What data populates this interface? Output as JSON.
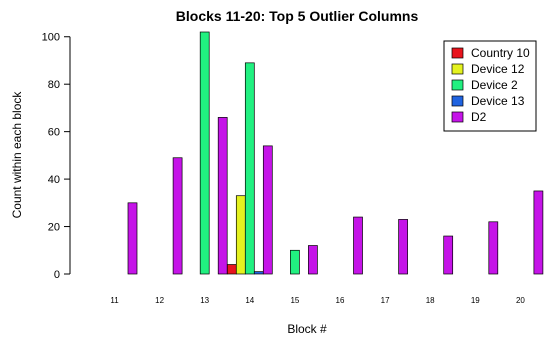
{
  "chart_data": {
    "type": "bar",
    "title": "Blocks 11-20: Top 5 Outlier Columns",
    "xlabel": "Block #",
    "ylabel": "Count within each block",
    "categories": [
      "11",
      "12",
      "13",
      "14",
      "15",
      "16",
      "17",
      "18",
      "19",
      "20"
    ],
    "ylim": [
      0,
      102
    ],
    "yticks": [
      0,
      20,
      40,
      60,
      80,
      100
    ],
    "legend_position": "top-right",
    "grid": false,
    "series": [
      {
        "name": "Country 10",
        "color": "#e8141d",
        "values": [
          0,
          0,
          0,
          4,
          0,
          0,
          0,
          0,
          0,
          0
        ]
      },
      {
        "name": "Device 12",
        "color": "#e4f21f",
        "values": [
          0,
          0,
          0,
          33,
          0,
          0,
          0,
          0,
          0,
          0
        ]
      },
      {
        "name": "Device 2",
        "color": "#21f080",
        "values": [
          0,
          0,
          102,
          89,
          10,
          0,
          0,
          0,
          0,
          0
        ]
      },
      {
        "name": "Device 13",
        "color": "#1f63e0",
        "values": [
          0,
          0,
          0,
          1,
          0,
          0,
          0,
          0,
          0,
          0
        ]
      },
      {
        "name": "D2",
        "color": "#c514e8",
        "values": [
          30,
          49,
          66,
          54,
          12,
          24,
          23,
          16,
          22,
          35
        ]
      }
    ]
  }
}
